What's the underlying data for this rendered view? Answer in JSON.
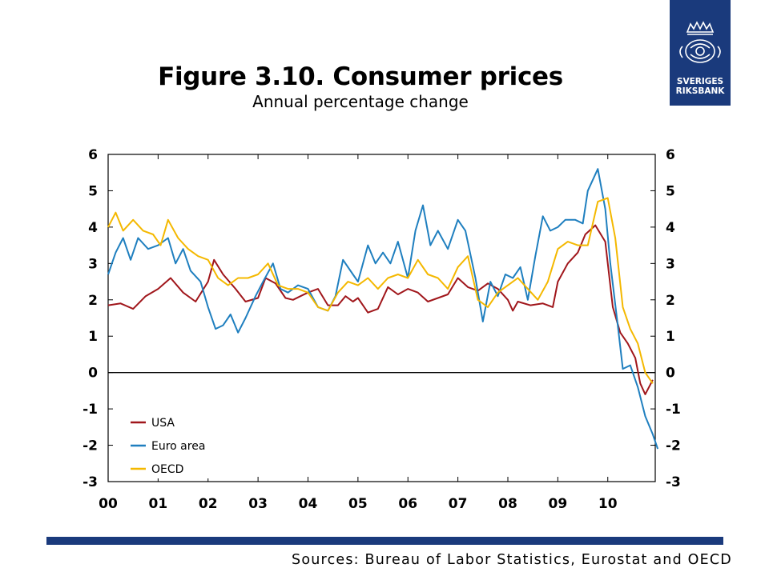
{
  "title": "Figure 3.10. Consumer prices",
  "subtitle": "Annual percentage change",
  "logo": {
    "line1": "SVERIGES",
    "line2": "RIKSBANK"
  },
  "source": "Sources: Bureau of Labor Statistics, Eurostat and OECD",
  "colors": {
    "brand": "#1a3a7c",
    "usa": "#a0161b",
    "euro": "#1f7fbf",
    "oecd": "#f4b800"
  },
  "chart_data": {
    "type": "line",
    "title": "Figure 3.10. Consumer prices",
    "subtitle": "Annual percentage change",
    "ylim": [
      -3,
      6
    ],
    "y_ticks": [
      "6",
      "5",
      "4",
      "3",
      "2",
      "1",
      "0",
      "-1",
      "-2",
      "-3"
    ],
    "x_tick_labels": [
      "00",
      "01",
      "02",
      "03",
      "04",
      "05",
      "06",
      "07",
      "08",
      "09",
      "10"
    ],
    "x_range": [
      2000.0,
      2010.95
    ],
    "legend": {
      "position": "bottom-left"
    },
    "series": [
      {
        "name": "USA",
        "color": "#a0161b",
        "points": [
          [
            2000.0,
            1.85
          ],
          [
            2000.25,
            1.9
          ],
          [
            2000.5,
            1.75
          ],
          [
            2000.75,
            2.1
          ],
          [
            2001.0,
            2.3
          ],
          [
            2001.25,
            2.6
          ],
          [
            2001.5,
            2.2
          ],
          [
            2001.75,
            1.95
          ],
          [
            2002.0,
            2.5
          ],
          [
            2002.12,
            3.1
          ],
          [
            2002.3,
            2.7
          ],
          [
            2002.55,
            2.3
          ],
          [
            2002.75,
            1.95
          ],
          [
            2003.0,
            2.05
          ],
          [
            2003.15,
            2.6
          ],
          [
            2003.35,
            2.45
          ],
          [
            2003.55,
            2.05
          ],
          [
            2003.7,
            2.0
          ],
          [
            2003.85,
            2.1
          ],
          [
            2004.0,
            2.2
          ],
          [
            2004.2,
            2.3
          ],
          [
            2004.4,
            1.85
          ],
          [
            2004.6,
            1.85
          ],
          [
            2004.75,
            2.1
          ],
          [
            2004.9,
            1.95
          ],
          [
            2005.0,
            2.05
          ],
          [
            2005.2,
            1.65
          ],
          [
            2005.4,
            1.75
          ],
          [
            2005.6,
            2.35
          ],
          [
            2005.8,
            2.15
          ],
          [
            2006.0,
            2.3
          ],
          [
            2006.2,
            2.2
          ],
          [
            2006.4,
            1.95
          ],
          [
            2006.6,
            2.05
          ],
          [
            2006.8,
            2.15
          ],
          [
            2007.0,
            2.6
          ],
          [
            2007.2,
            2.35
          ],
          [
            2007.4,
            2.25
          ],
          [
            2007.6,
            2.45
          ],
          [
            2007.8,
            2.3
          ],
          [
            2008.0,
            2.0
          ],
          [
            2008.1,
            1.7
          ],
          [
            2008.2,
            1.95
          ],
          [
            2008.45,
            1.85
          ],
          [
            2008.7,
            1.9
          ],
          [
            2008.9,
            1.8
          ],
          [
            2009.0,
            2.5
          ],
          [
            2009.2,
            3.0
          ],
          [
            2009.4,
            3.3
          ],
          [
            2009.55,
            3.8
          ],
          [
            2009.75,
            4.05
          ],
          [
            2009.95,
            3.6
          ],
          [
            2010.1,
            1.8
          ],
          [
            2010.25,
            1.1
          ],
          [
            2010.4,
            0.8
          ],
          [
            2010.55,
            0.4
          ],
          [
            2010.65,
            -0.3
          ],
          [
            2010.75,
            -0.6
          ],
          [
            2010.9,
            -0.2
          ]
        ]
      },
      {
        "name": "Euro area",
        "color": "#1f7fbf",
        "points": [
          [
            2000.0,
            2.7
          ],
          [
            2000.15,
            3.3
          ],
          [
            2000.3,
            3.7
          ],
          [
            2000.45,
            3.1
          ],
          [
            2000.6,
            3.7
          ],
          [
            2000.8,
            3.4
          ],
          [
            2001.0,
            3.5
          ],
          [
            2001.2,
            3.7
          ],
          [
            2001.35,
            3.0
          ],
          [
            2001.5,
            3.4
          ],
          [
            2001.65,
            2.8
          ],
          [
            2001.85,
            2.5
          ],
          [
            2002.0,
            1.8
          ],
          [
            2002.15,
            1.2
          ],
          [
            2002.3,
            1.3
          ],
          [
            2002.45,
            1.6
          ],
          [
            2002.6,
            1.1
          ],
          [
            2002.75,
            1.5
          ],
          [
            2002.95,
            2.1
          ],
          [
            2003.1,
            2.5
          ],
          [
            2003.3,
            3.0
          ],
          [
            2003.45,
            2.3
          ],
          [
            2003.6,
            2.2
          ],
          [
            2003.8,
            2.4
          ],
          [
            2004.0,
            2.3
          ],
          [
            2004.2,
            1.8
          ],
          [
            2004.4,
            1.7
          ],
          [
            2004.55,
            2.1
          ],
          [
            2004.7,
            3.1
          ],
          [
            2004.9,
            2.7
          ],
          [
            2005.0,
            2.5
          ],
          [
            2005.2,
            3.5
          ],
          [
            2005.35,
            3.0
          ],
          [
            2005.5,
            3.3
          ],
          [
            2005.65,
            3.0
          ],
          [
            2005.8,
            3.6
          ],
          [
            2006.0,
            2.6
          ],
          [
            2006.15,
            3.9
          ],
          [
            2006.3,
            4.6
          ],
          [
            2006.45,
            3.5
          ],
          [
            2006.6,
            3.9
          ],
          [
            2006.8,
            3.4
          ],
          [
            2007.0,
            4.2
          ],
          [
            2007.15,
            3.9
          ],
          [
            2007.35,
            2.6
          ],
          [
            2007.5,
            1.4
          ],
          [
            2007.65,
            2.5
          ],
          [
            2007.8,
            2.1
          ],
          [
            2007.95,
            2.7
          ],
          [
            2008.1,
            2.6
          ],
          [
            2008.25,
            2.9
          ],
          [
            2008.4,
            2.0
          ],
          [
            2008.55,
            3.2
          ],
          [
            2008.7,
            4.3
          ],
          [
            2008.85,
            3.9
          ],
          [
            2009.0,
            4.0
          ],
          [
            2009.15,
            4.2
          ],
          [
            2009.35,
            4.2
          ],
          [
            2009.5,
            4.1
          ],
          [
            2009.6,
            5.0
          ],
          [
            2009.8,
            5.6
          ],
          [
            2009.95,
            4.5
          ],
          [
            2010.05,
            3.0
          ],
          [
            2010.2,
            1.3
          ],
          [
            2010.3,
            0.1
          ],
          [
            2010.45,
            0.2
          ],
          [
            2010.6,
            -0.4
          ],
          [
            2010.75,
            -1.2
          ],
          [
            2010.9,
            -1.7
          ],
          [
            2011.0,
            -2.1
          ]
        ]
      },
      {
        "name": "OECD",
        "color": "#f4b800",
        "points": [
          [
            2000.0,
            4.0
          ],
          [
            2000.15,
            4.4
          ],
          [
            2000.3,
            3.9
          ],
          [
            2000.5,
            4.2
          ],
          [
            2000.7,
            3.9
          ],
          [
            2000.9,
            3.8
          ],
          [
            2001.05,
            3.5
          ],
          [
            2001.2,
            4.2
          ],
          [
            2001.4,
            3.7
          ],
          [
            2001.6,
            3.4
          ],
          [
            2001.8,
            3.2
          ],
          [
            2002.0,
            3.1
          ],
          [
            2002.2,
            2.6
          ],
          [
            2002.4,
            2.4
          ],
          [
            2002.6,
            2.6
          ],
          [
            2002.8,
            2.6
          ],
          [
            2003.0,
            2.7
          ],
          [
            2003.2,
            3.0
          ],
          [
            2003.4,
            2.4
          ],
          [
            2003.6,
            2.3
          ],
          [
            2003.8,
            2.3
          ],
          [
            2004.0,
            2.2
          ],
          [
            2004.2,
            1.8
          ],
          [
            2004.4,
            1.7
          ],
          [
            2004.6,
            2.2
          ],
          [
            2004.8,
            2.5
          ],
          [
            2005.0,
            2.4
          ],
          [
            2005.2,
            2.6
          ],
          [
            2005.4,
            2.3
          ],
          [
            2005.6,
            2.6
          ],
          [
            2005.8,
            2.7
          ],
          [
            2006.0,
            2.6
          ],
          [
            2006.2,
            3.1
          ],
          [
            2006.4,
            2.7
          ],
          [
            2006.6,
            2.6
          ],
          [
            2006.8,
            2.3
          ],
          [
            2007.0,
            2.9
          ],
          [
            2007.2,
            3.2
          ],
          [
            2007.4,
            2.0
          ],
          [
            2007.6,
            1.8
          ],
          [
            2007.8,
            2.2
          ],
          [
            2008.0,
            2.4
          ],
          [
            2008.2,
            2.6
          ],
          [
            2008.4,
            2.3
          ],
          [
            2008.6,
            2.0
          ],
          [
            2008.8,
            2.5
          ],
          [
            2009.0,
            3.4
          ],
          [
            2009.2,
            3.6
          ],
          [
            2009.4,
            3.5
          ],
          [
            2009.6,
            3.5
          ],
          [
            2009.8,
            4.7
          ],
          [
            2010.0,
            4.8
          ],
          [
            2010.15,
            3.7
          ],
          [
            2010.3,
            1.8
          ],
          [
            2010.45,
            1.2
          ],
          [
            2010.6,
            0.8
          ],
          [
            2010.75,
            0.0
          ],
          [
            2010.9,
            -0.3
          ]
        ]
      }
    ]
  }
}
